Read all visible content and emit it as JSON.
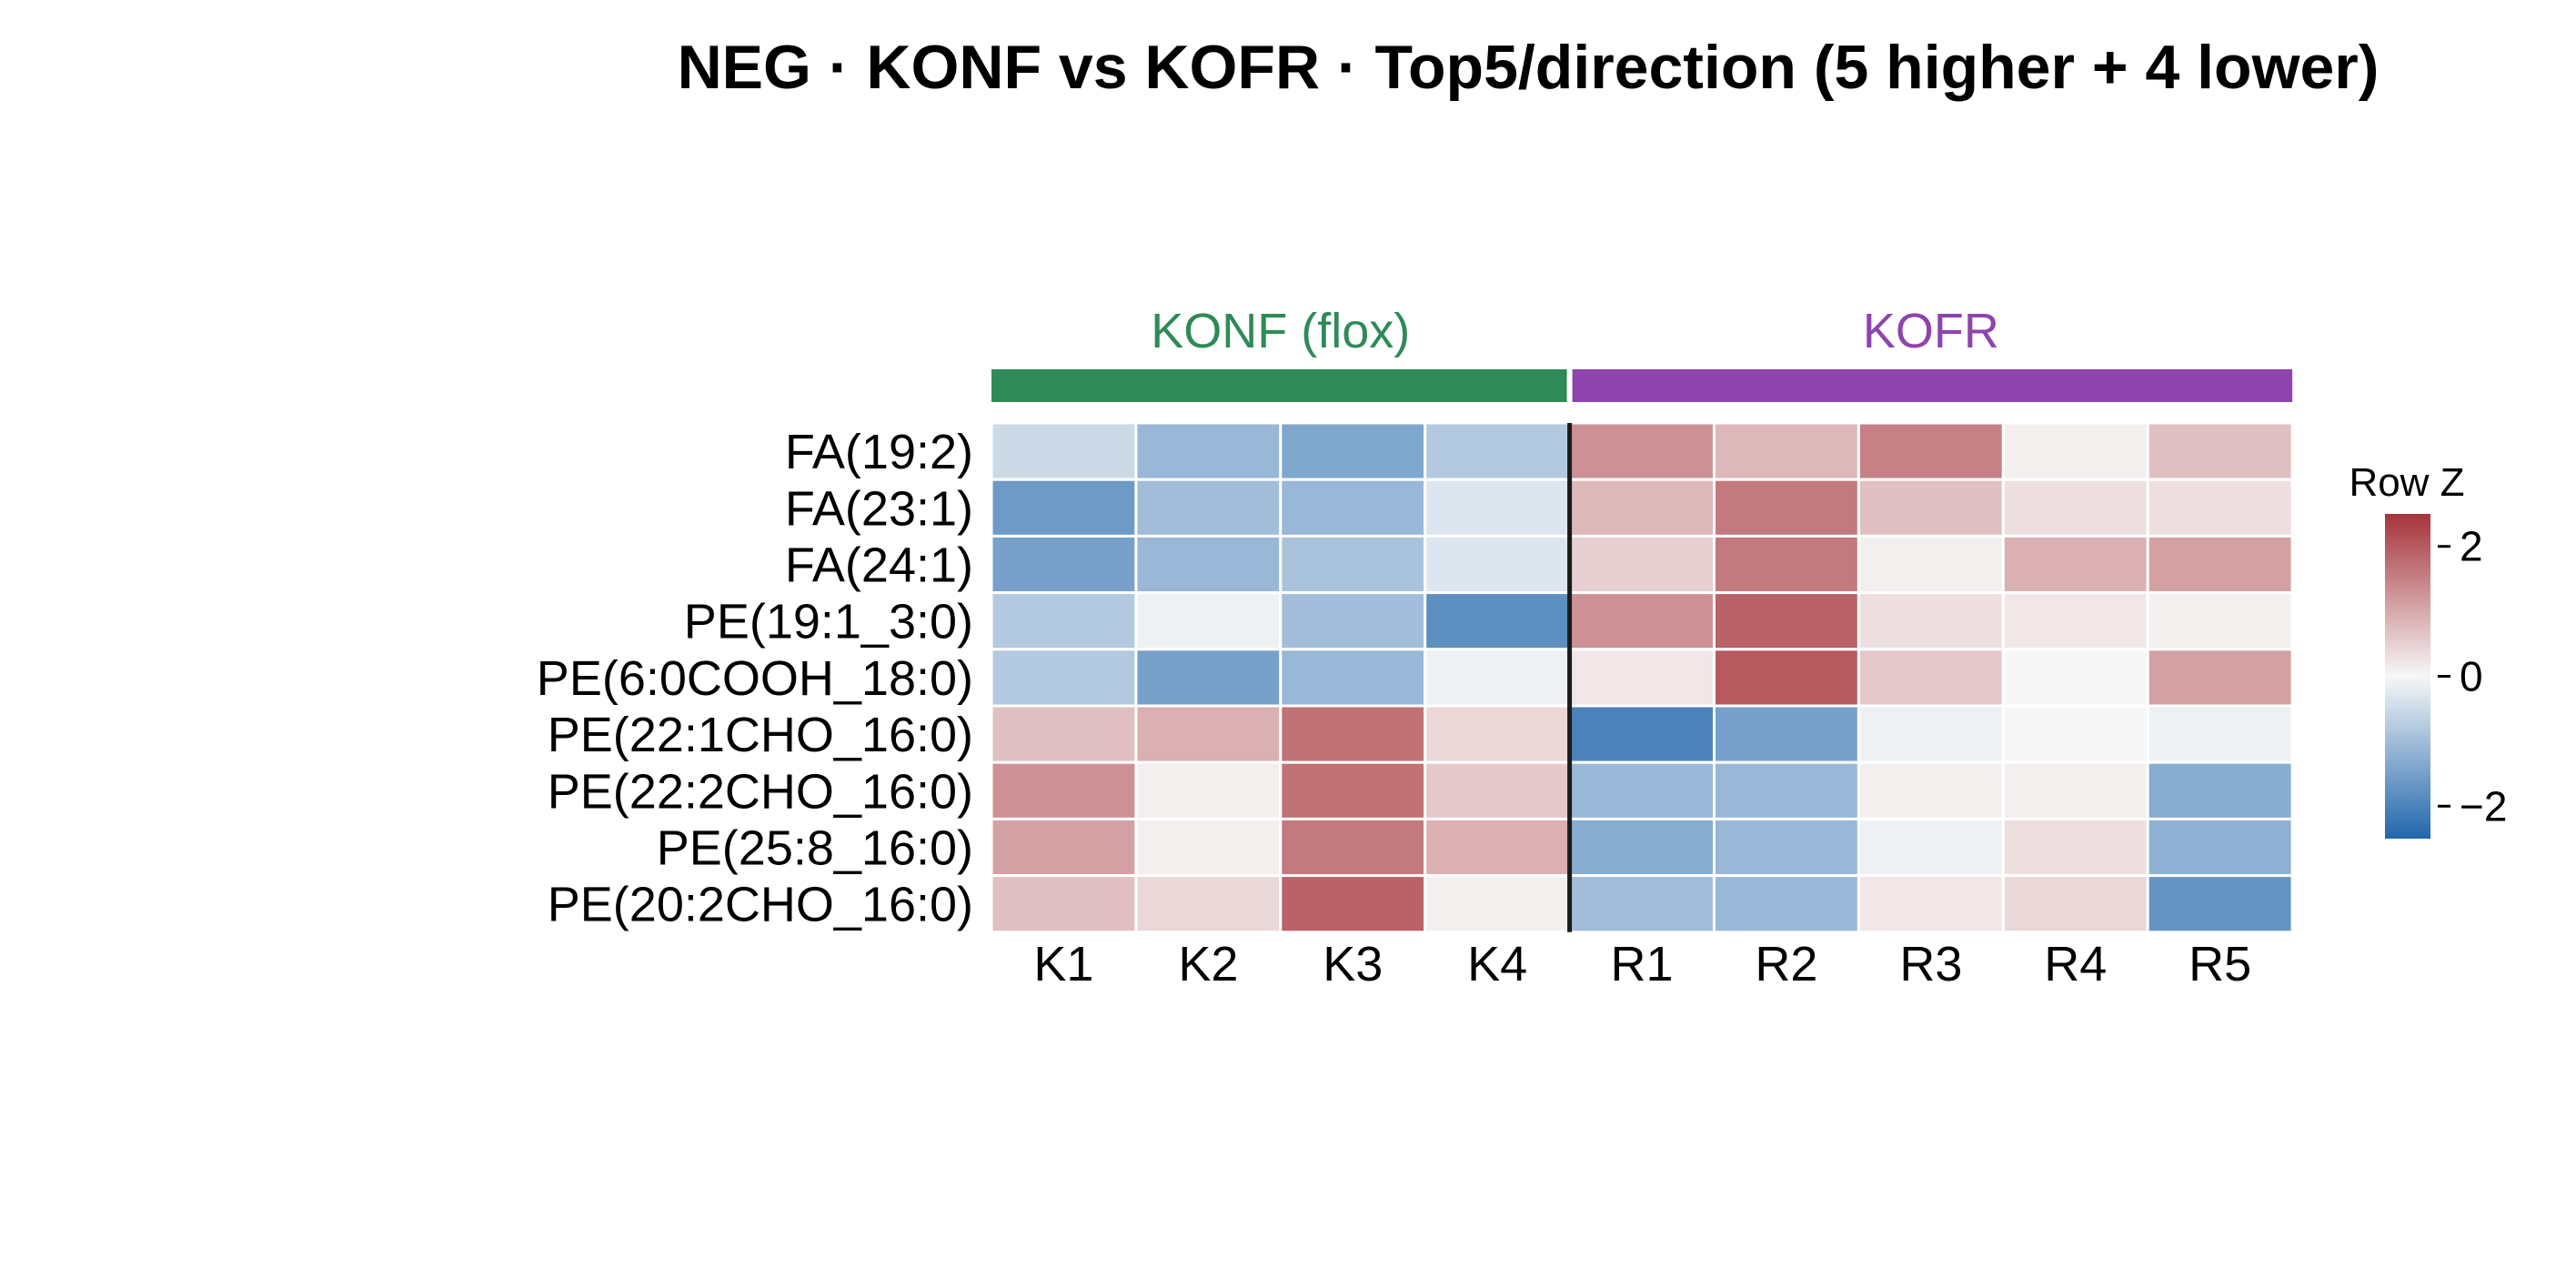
{
  "chart_data": {
    "type": "heatmap",
    "title": "NEG · KONF vs KOFR · Top5/direction (5 higher + 4 lower)",
    "groups": [
      {
        "label": "KONF (flox)",
        "color": "#2e8b57",
        "columns": [
          "K1",
          "K2",
          "K3",
          "K4"
        ]
      },
      {
        "label": "KOFR",
        "color": "#8e44ad",
        "columns": [
          "R1",
          "R2",
          "R3",
          "R4",
          "R5"
        ]
      }
    ],
    "columns": [
      "K1",
      "K2",
      "K3",
      "K4",
      "R1",
      "R2",
      "R3",
      "R4",
      "R5"
    ],
    "rows": [
      "FA(19:2)",
      "FA(23:1)",
      "FA(24:1)",
      "PE(19:1_3:0)",
      "PE(6:0COOH_18:0)",
      "PE(22:1CHO_16:0)",
      "PE(22:2CHO_16:0)",
      "PE(25:8_16:0)",
      "PE(20:2CHO_16:0)"
    ],
    "values": [
      [
        -0.5,
        -1.1,
        -1.4,
        -0.8,
        1.3,
        0.8,
        1.5,
        0.1,
        0.7
      ],
      [
        -1.6,
        -1.0,
        -1.1,
        -0.3,
        0.8,
        1.6,
        0.7,
        0.3,
        0.3
      ],
      [
        -1.5,
        -1.1,
        -0.9,
        -0.3,
        0.5,
        1.6,
        0.1,
        0.9,
        1.1
      ],
      [
        -0.8,
        -0.1,
        -1.0,
        -1.8,
        1.3,
        1.9,
        0.3,
        0.2,
        0.1
      ],
      [
        -0.8,
        -1.5,
        -1.1,
        -0.1,
        0.2,
        2.0,
        0.6,
        0.0,
        1.1
      ],
      [
        0.7,
        0.9,
        1.7,
        0.4,
        -2.0,
        -1.5,
        -0.1,
        0.0,
        -0.1
      ],
      [
        1.3,
        0.1,
        1.7,
        0.6,
        -1.1,
        -1.1,
        0.1,
        0.1,
        -1.3
      ],
      [
        1.1,
        0.1,
        1.6,
        0.9,
        -1.3,
        -1.1,
        -0.1,
        0.3,
        -1.2
      ],
      [
        0.7,
        0.4,
        1.9,
        0.1,
        -1.0,
        -1.1,
        0.2,
        0.4,
        -1.7
      ]
    ],
    "colorbar": {
      "title": "Row Z",
      "range": [
        -2.5,
        2.5
      ],
      "ticks": [
        2,
        0,
        -2
      ],
      "tick_labels": [
        "2",
        "0",
        "−2"
      ],
      "colors": {
        "low": "#2166ac",
        "mid": "#f7f7f7",
        "high": "#a6333a"
      }
    }
  }
}
